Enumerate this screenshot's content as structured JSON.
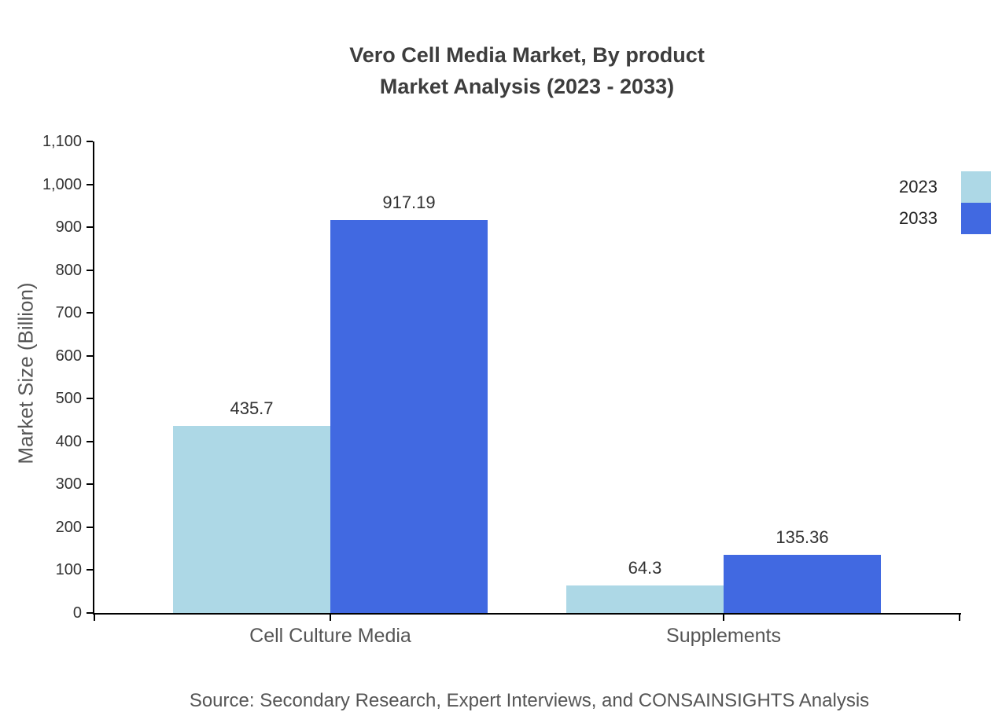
{
  "chart_data": {
    "type": "bar",
    "title_line1": "Vero Cell Media Market, By product",
    "title_line2": "Market Analysis (2023 - 2033)",
    "ylabel": "Market Size (Billion)",
    "xlabel": "",
    "categories": [
      "Cell Culture Media",
      "Supplements"
    ],
    "series": [
      {
        "name": "2023",
        "color": "#add8e6",
        "values": [
          435.7,
          64.3
        ]
      },
      {
        "name": "2033",
        "color": "#4169e1",
        "values": [
          917.19,
          135.36
        ]
      }
    ],
    "value_labels": [
      [
        "435.7",
        "64.3"
      ],
      [
        "917.19",
        "135.36"
      ]
    ],
    "ylim": [
      0,
      1100
    ],
    "ytick_step": 100,
    "grid": false,
    "legend_position": "top-right",
    "source": "Source: Secondary Research, Expert Interviews, and CONSAINSIGHTS Analysis"
  }
}
